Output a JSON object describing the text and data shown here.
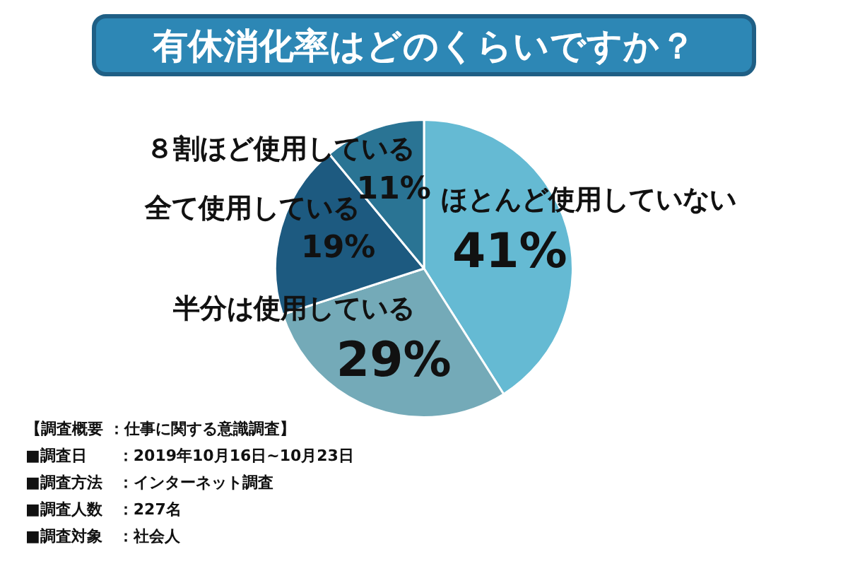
{
  "chart_data": {
    "type": "pie",
    "title": "有休消化率はどのくらいですか？",
    "categories": [
      "ほとんど使用していない",
      "半分は使用している",
      "全て使用している",
      "８割ほど使用している"
    ],
    "values": [
      41,
      29,
      19,
      11
    ],
    "colors": [
      "#65bad3",
      "#74aab8",
      "#1d5a80",
      "#2a7494"
    ],
    "value_labels": [
      "41%",
      "29%",
      "19%",
      "11%"
    ],
    "legend": false,
    "annotations": [
      "【調査概要 ：仕事に関する意識調査】",
      "■調査日　　：2019年10月16日~10月23日",
      "■調査方法　：インターネット調査",
      "■調査人数　：227名",
      "■調査対象　：社会人"
    ]
  }
}
